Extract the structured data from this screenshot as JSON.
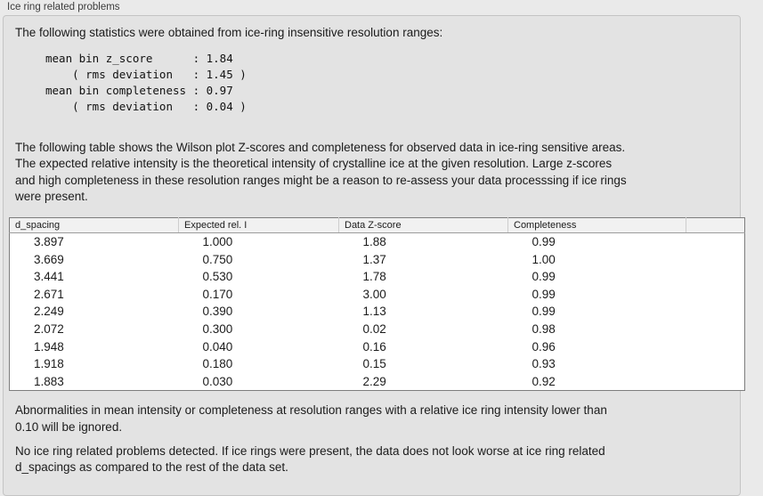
{
  "panel": {
    "title": "Ice ring related problems",
    "intro": "The following statistics were obtained from ice-ring insensitive resolution ranges:",
    "stats_block": [
      "mean bin z_score      : 1.84",
      "    ( rms deviation   : 1.45 )",
      "mean bin completeness : 0.97",
      "    ( rms deviation   : 0.04 )"
    ],
    "description_lines": [
      "The following table shows the Wilson plot Z-scores and completeness for observed data in ice-ring sensitive areas.",
      "The expected relative intensity is the theoretical intensity of crystalline ice at the given resolution. Large z-scores",
      "and high completeness in these resolution ranges might be a reason to re-assess your data processsing if ice rings",
      "were present."
    ],
    "ignore_note_lines": [
      "Abnormalities in mean intensity or completeness at resolution ranges with a relative ice ring intensity lower than",
      "0.10 will be ignored."
    ],
    "conclusion_lines": [
      "No ice ring related problems detected. If ice rings were present, the data does not look worse at ice ring related",
      "d_spacings as compared to the rest of the data set."
    ]
  },
  "table": {
    "columns": [
      "d_spacing",
      "Expected rel. I",
      "Data Z-score",
      "Completeness",
      ""
    ],
    "rows": [
      [
        "3.897",
        "1.000",
        "1.88",
        "0.99"
      ],
      [
        "3.669",
        "0.750",
        "1.37",
        "1.00"
      ],
      [
        "3.441",
        "0.530",
        "1.78",
        "0.99"
      ],
      [
        "2.671",
        "0.170",
        "3.00",
        "0.99"
      ],
      [
        "2.249",
        "0.390",
        "1.13",
        "0.99"
      ],
      [
        "2.072",
        "0.300",
        "0.02",
        "0.98"
      ],
      [
        "1.948",
        "0.040",
        "0.16",
        "0.96"
      ],
      [
        "1.918",
        "0.180",
        "0.15",
        "0.93"
      ],
      [
        "1.883",
        "0.030",
        "2.29",
        "0.92"
      ]
    ]
  },
  "colors": {
    "page_bg": "#eaeaea",
    "panel_bg": "#e3e3e3",
    "panel_border": "#c4c4c4",
    "table_bg": "#ffffff",
    "table_border": "#7d7d7d",
    "table_header_bg": "#f1f1f1",
    "text": "#1b1b1b"
  }
}
